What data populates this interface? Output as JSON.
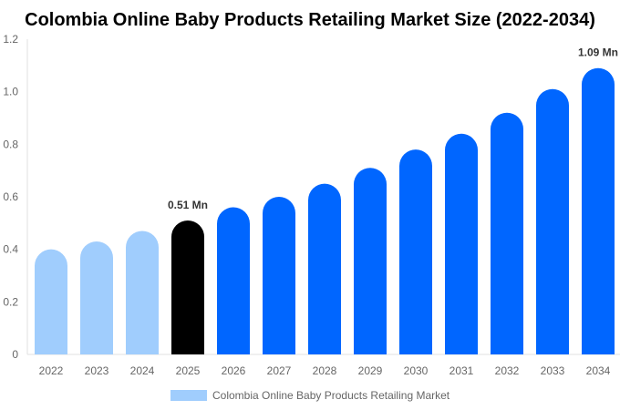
{
  "chart_data": {
    "type": "bar",
    "title": "Colombia Online Baby Products Retailing Market Size (2022-2034)",
    "xlabel": "",
    "ylabel": "",
    "categories": [
      "2022",
      "2023",
      "2024",
      "2025",
      "2026",
      "2027",
      "2028",
      "2029",
      "2030",
      "2031",
      "2032",
      "2033",
      "2034"
    ],
    "series": [
      {
        "name": "Colombia Online Baby Products Retailing Market",
        "values": [
          0.4,
          0.43,
          0.47,
          0.51,
          0.56,
          0.6,
          0.65,
          0.71,
          0.78,
          0.84,
          0.92,
          1.01,
          1.09
        ]
      }
    ],
    "ylim": [
      0,
      1.2
    ],
    "yticks": [
      "0",
      "0.2",
      "0.4",
      "0.6",
      "0.8",
      "1.0",
      "1.2"
    ],
    "data_labels": [
      {
        "category": "2025",
        "text": "0.51 Mn"
      },
      {
        "category": "2034",
        "text": "1.09 Mn"
      }
    ],
    "colors": {
      "historical": "#a0cdfd",
      "base_year": "#000000",
      "forecast": "#0066ff"
    },
    "historical_years": [
      "2022",
      "2023",
      "2024"
    ],
    "base_year": "2025",
    "grid": false,
    "legend_placement": "bottom"
  }
}
